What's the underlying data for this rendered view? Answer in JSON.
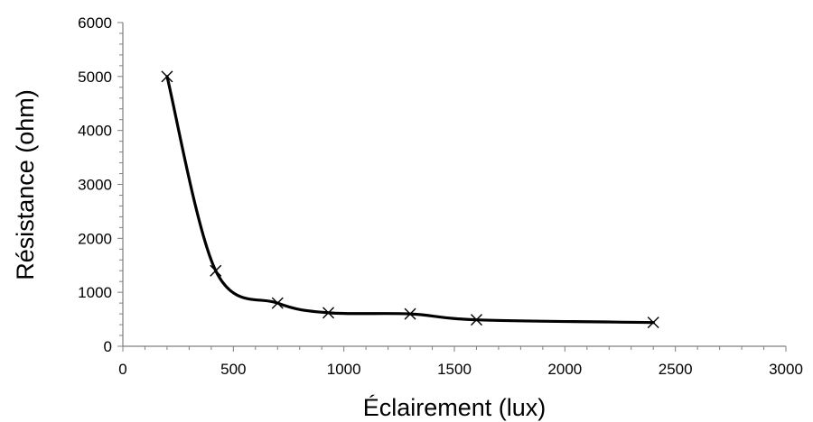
{
  "chart_data": {
    "type": "scatter",
    "line": "smooth",
    "marker": "x",
    "xlabel": "Éclairement (lux)",
    "ylabel": "Résistance (ohm)",
    "xlim": [
      0,
      3000
    ],
    "ylim": [
      0,
      6000
    ],
    "xticks": [
      "0",
      "500",
      "1000",
      "1500",
      "2000",
      "2500",
      "3000"
    ],
    "yticks": [
      "0",
      "1000",
      "2000",
      "3000",
      "4000",
      "5000",
      "6000"
    ],
    "grid": false,
    "legend": "none",
    "series": [
      {
        "x": [
          200,
          420,
          700,
          930,
          1300,
          1600,
          2400
        ],
        "y": [
          5000,
          1400,
          800,
          620,
          600,
          490,
          440
        ],
        "color": "#000000"
      }
    ]
  }
}
